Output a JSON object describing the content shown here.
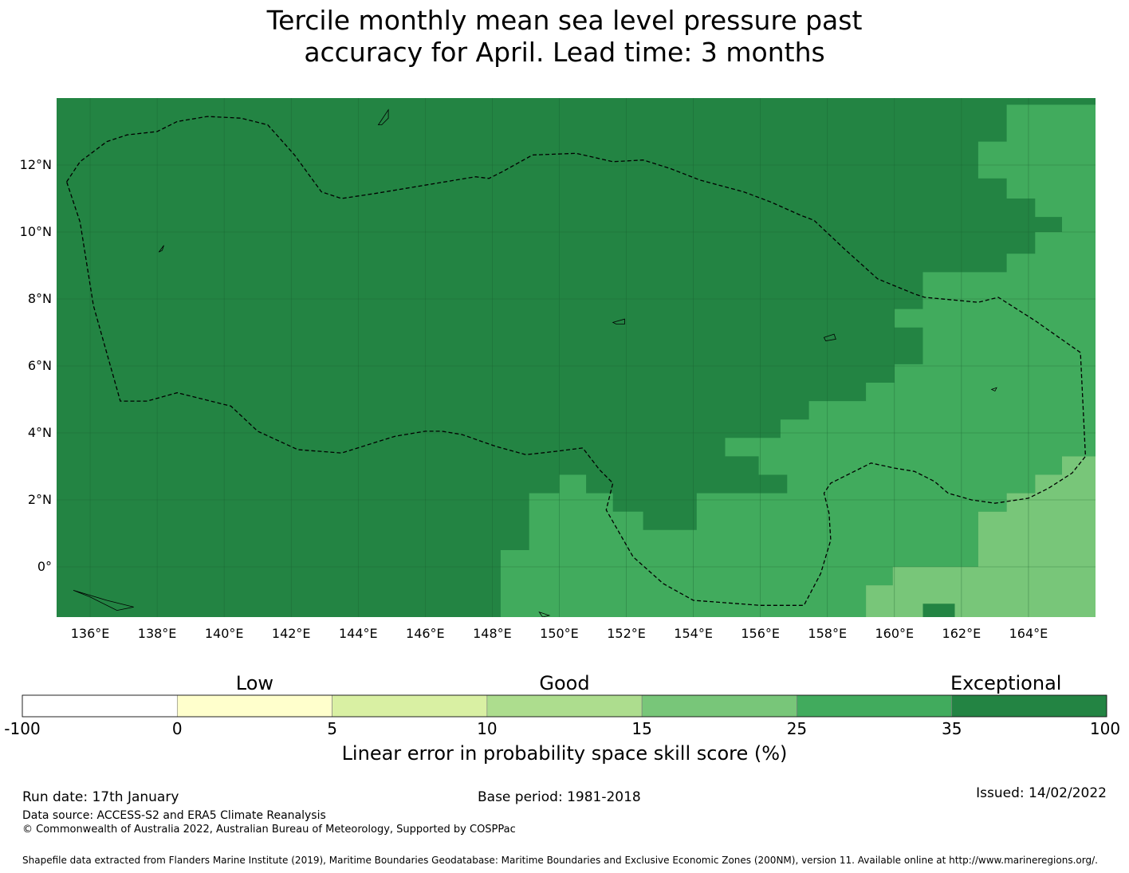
{
  "title": {
    "line1": "Tercile monthly mean sea level pressure past",
    "line2": "accuracy for April. Lead time: 3 months"
  },
  "map": {
    "lon_range": [
      135,
      166
    ],
    "lat_range": [
      -1.5,
      14
    ],
    "lat_ticks": [
      {
        "value": 12,
        "label": "12°N"
      },
      {
        "value": 10,
        "label": "10°N"
      },
      {
        "value": 8,
        "label": "8°N"
      },
      {
        "value": 6,
        "label": "6°N"
      },
      {
        "value": 4,
        "label": "4°N"
      },
      {
        "value": 2,
        "label": "2°N"
      },
      {
        "value": 0,
        "label": "0°"
      }
    ],
    "lon_ticks": [
      {
        "value": 136,
        "label": "136°E"
      },
      {
        "value": 138,
        "label": "138°E"
      },
      {
        "value": 140,
        "label": "140°E"
      },
      {
        "value": 142,
        "label": "142°E"
      },
      {
        "value": 144,
        "label": "144°E"
      },
      {
        "value": 146,
        "label": "146°E"
      },
      {
        "value": 148,
        "label": "148°E"
      },
      {
        "value": 150,
        "label": "150°E"
      },
      {
        "value": 152,
        "label": "152°E"
      },
      {
        "value": 154,
        "label": "154°E"
      },
      {
        "value": 156,
        "label": "156°E"
      },
      {
        "value": 158,
        "label": "158°E"
      },
      {
        "value": 160,
        "label": "160°E"
      },
      {
        "value": 162,
        "label": "162°E"
      },
      {
        "value": 164,
        "label": "164°E"
      }
    ],
    "colors": {
      "exceptional": "#238443",
      "very_good": "#41ab5d",
      "good_mid": "#78c679",
      "grid": "#1a5f30",
      "eez": "#000000"
    },
    "regions": [
      {
        "name": "skill-35-to-25-region",
        "class": "very_good",
        "points": [
          [
            148.25,
            -1.5
          ],
          [
            148.25,
            0.5
          ],
          [
            149.1,
            0.5
          ],
          [
            149.1,
            2.2
          ],
          [
            150,
            2.2
          ],
          [
            150,
            2.75
          ],
          [
            150.8,
            2.75
          ],
          [
            150.8,
            2.2
          ],
          [
            151.6,
            2.2
          ],
          [
            151.6,
            1.65
          ],
          [
            152.5,
            1.65
          ],
          [
            152.5,
            1.1
          ],
          [
            154.1,
            1.1
          ],
          [
            154.1,
            2.2
          ],
          [
            157.85,
            2.2
          ],
          [
            156.8,
            2.2
          ],
          [
            156.8,
            2.75
          ],
          [
            155.95,
            2.75
          ],
          [
            155.95,
            3.3
          ],
          [
            154.95,
            3.3
          ],
          [
            154.95,
            3.85
          ],
          [
            155.8,
            3.85
          ],
          [
            155.8,
            3.85
          ],
          [
            156.6,
            3.85
          ],
          [
            156.6,
            4.4
          ],
          [
            157.45,
            4.4
          ],
          [
            157.45,
            4.95
          ],
          [
            159.15,
            4.95
          ],
          [
            159.15,
            5.5
          ],
          [
            160,
            5.5
          ],
          [
            160,
            6.05
          ],
          [
            160.85,
            6.05
          ],
          [
            160.85,
            7.15
          ],
          [
            160,
            7.15
          ],
          [
            160,
            7.7
          ],
          [
            160.85,
            7.7
          ],
          [
            160.85,
            8.8
          ],
          [
            163.35,
            8.8
          ],
          [
            163.35,
            9.35
          ],
          [
            164.2,
            9.35
          ],
          [
            164.2,
            10
          ],
          [
            165,
            10
          ],
          [
            165,
            10.45
          ],
          [
            164.2,
            10.45
          ],
          [
            164.2,
            11
          ],
          [
            163.35,
            11
          ],
          [
            163.35,
            11.6
          ],
          [
            162.5,
            11.6
          ],
          [
            162.5,
            12.7
          ],
          [
            163.35,
            12.7
          ],
          [
            163.35,
            13.8
          ],
          [
            166,
            13.8
          ],
          [
            166,
            3.3
          ],
          [
            165,
            3.3
          ],
          [
            165,
            2.75
          ],
          [
            164.2,
            2.75
          ],
          [
            164.2,
            2.2
          ],
          [
            163.35,
            2.2
          ],
          [
            163.35,
            1.65
          ],
          [
            162.5,
            1.65
          ],
          [
            162.5,
            0
          ],
          [
            159.95,
            0
          ],
          [
            159.95,
            -0.55
          ],
          [
            159.15,
            -0.55
          ],
          [
            159.15,
            -1.5
          ]
        ]
      },
      {
        "name": "skill-25-to-15-region",
        "class": "good_mid",
        "points": [
          [
            159.15,
            -1.5
          ],
          [
            159.15,
            -0.55
          ],
          [
            159.95,
            -0.55
          ],
          [
            159.95,
            0
          ],
          [
            162.5,
            0
          ],
          [
            162.5,
            1.65
          ],
          [
            163.35,
            1.65
          ],
          [
            163.35,
            2.2
          ],
          [
            164.2,
            2.2
          ],
          [
            164.2,
            2.75
          ],
          [
            165,
            2.75
          ],
          [
            165,
            3.3
          ],
          [
            166,
            3.3
          ],
          [
            166,
            -1.5
          ],
          [
            161.8,
            -1.5
          ],
          [
            161.8,
            -1.1
          ],
          [
            160.85,
            -1.1
          ],
          [
            160.85,
            -1.5
          ]
        ]
      }
    ],
    "eez_paths": [
      [
        [
          135.3,
          11.5
        ],
        [
          135.7,
          12.1
        ],
        [
          136.5,
          12.7
        ],
        [
          137.1,
          12.9
        ],
        [
          138,
          13
        ],
        [
          138.6,
          13.3
        ],
        [
          139.5,
          13.45
        ],
        [
          140.5,
          13.4
        ],
        [
          141.3,
          13.2
        ],
        [
          142.1,
          12.3
        ],
        [
          142.9,
          11.2
        ],
        [
          143.5,
          11
        ],
        [
          144.5,
          11.15
        ],
        [
          146,
          11.4
        ],
        [
          147.5,
          11.65
        ],
        [
          147.9,
          11.6
        ],
        [
          148.3,
          11.8
        ],
        [
          149.2,
          12.3
        ],
        [
          150.5,
          12.35
        ],
        [
          151.6,
          12.1
        ],
        [
          152.5,
          12.15
        ],
        [
          153.3,
          11.9
        ],
        [
          154.2,
          11.55
        ],
        [
          155.5,
          11.2
        ],
        [
          156.3,
          10.9
        ],
        [
          157.2,
          10.5
        ],
        [
          157.6,
          10.35
        ],
        [
          158.5,
          9.5
        ],
        [
          159.5,
          8.6
        ],
        [
          160.6,
          8.15
        ],
        [
          160.9,
          8.05
        ],
        [
          162.5,
          7.9
        ],
        [
          163.1,
          8.05
        ],
        [
          164.2,
          7.35
        ],
        [
          165.55,
          6.4
        ],
        [
          165.7,
          3.3
        ],
        [
          165.3,
          2.8
        ],
        [
          164.6,
          2.35
        ],
        [
          164,
          2.05
        ],
        [
          163,
          1.9
        ],
        [
          162.3,
          2
        ],
        [
          161.6,
          2.2
        ],
        [
          161.2,
          2.55
        ],
        [
          160.6,
          2.85
        ],
        [
          160,
          2.95
        ],
        [
          159.3,
          3.1
        ],
        [
          158.6,
          2.75
        ],
        [
          158.1,
          2.5
        ],
        [
          157.9,
          2.2
        ],
        [
          158.05,
          1.6
        ],
        [
          158.1,
          0.8
        ],
        [
          157.8,
          -0.2
        ],
        [
          157.3,
          -1.15
        ],
        [
          156,
          -1.15
        ],
        [
          154,
          -1
        ],
        [
          153.1,
          -0.5
        ],
        [
          152.2,
          0.3
        ],
        [
          151.4,
          1.7
        ],
        [
          151.6,
          2.5
        ],
        [
          151.2,
          2.9
        ],
        [
          150.7,
          3.55
        ],
        [
          149.9,
          3.45
        ],
        [
          149,
          3.35
        ],
        [
          148.1,
          3.6
        ],
        [
          147.1,
          3.95
        ],
        [
          146.5,
          4.05
        ],
        [
          146,
          4.05
        ],
        [
          145.1,
          3.9
        ],
        [
          143.5,
          3.4
        ],
        [
          142.2,
          3.5
        ],
        [
          141,
          4.05
        ],
        [
          140.2,
          4.8
        ],
        [
          138.6,
          5.2
        ],
        [
          137.7,
          4.95
        ],
        [
          136.9,
          4.95
        ],
        [
          136.1,
          7.8
        ],
        [
          135.7,
          10.3
        ],
        [
          135.3,
          11.5
        ]
      ]
    ],
    "islands": [
      {
        "name": "guam-island",
        "points": [
          [
            144.6,
            13.2
          ],
          [
            144.9,
            13.65
          ],
          [
            144.9,
            13.4
          ],
          [
            144.7,
            13.2
          ]
        ]
      },
      {
        "name": "chuuk-island",
        "points": [
          [
            151.6,
            7.3
          ],
          [
            151.95,
            7.4
          ],
          [
            151.95,
            7.25
          ],
          [
            151.7,
            7.25
          ]
        ]
      },
      {
        "name": "pohnpei-island",
        "points": [
          [
            157.9,
            6.85
          ],
          [
            158.2,
            6.95
          ],
          [
            158.25,
            6.8
          ],
          [
            157.95,
            6.75
          ]
        ]
      },
      {
        "name": "yap-island",
        "points": [
          [
            138.05,
            9.4
          ],
          [
            138.2,
            9.6
          ],
          [
            138.15,
            9.45
          ]
        ]
      },
      {
        "name": "kosrae-island",
        "points": [
          [
            162.9,
            5.3
          ],
          [
            163.05,
            5.35
          ],
          [
            163,
            5.25
          ]
        ]
      },
      {
        "name": "png-islands",
        "points": [
          [
            135.5,
            -0.7
          ],
          [
            136.5,
            -1
          ],
          [
            137.3,
            -1.2
          ],
          [
            136.8,
            -1.3
          ],
          [
            136,
            -0.9
          ]
        ]
      },
      {
        "name": "manus-island",
        "points": [
          [
            149.4,
            -1.35
          ],
          [
            149.7,
            -1.45
          ],
          [
            149.5,
            -1.5
          ]
        ]
      }
    ]
  },
  "colorbar": {
    "categories": [
      {
        "label": "Low",
        "at": 1.5
      },
      {
        "label": "Good",
        "at": 3.5
      },
      {
        "label": "Exceptional",
        "at": 6.35
      }
    ],
    "bins": [
      {
        "from": -100,
        "to": 0,
        "color": "#ffffff"
      },
      {
        "from": 0,
        "to": 5,
        "color": "#ffffcc"
      },
      {
        "from": 5,
        "to": 10,
        "color": "#d9f0a3"
      },
      {
        "from": 10,
        "to": 15,
        "color": "#addd8e"
      },
      {
        "from": 15,
        "to": 25,
        "color": "#78c679"
      },
      {
        "from": 25,
        "to": 35,
        "color": "#41ab5d"
      },
      {
        "from": 35,
        "to": 100,
        "color": "#238443"
      }
    ],
    "ticks": [
      "-100",
      "0",
      "5",
      "10",
      "15",
      "25",
      "35",
      "100"
    ],
    "label": "Linear error in probability space skill score (%)"
  },
  "footer": {
    "run_date": "Run date: 17th January",
    "base_period": "Base period: 1981-2018",
    "issued": "Issued: 14/02/2022",
    "data_source": "Data source: ACCESS-S2 and ERA5 Climate Reanalysis",
    "copyright": "© Commonwealth of Australia 2022, Australian Bureau of Meteorology, Supported by COSPPac",
    "shapefile": "Shapefile data extracted from Flanders Marine Institute (2019), Maritime Boundaries Geodatabase: Maritime Boundaries and Exclusive Economic Zones (200NM), version 11. Available online at http://www.marineregions.org/."
  }
}
